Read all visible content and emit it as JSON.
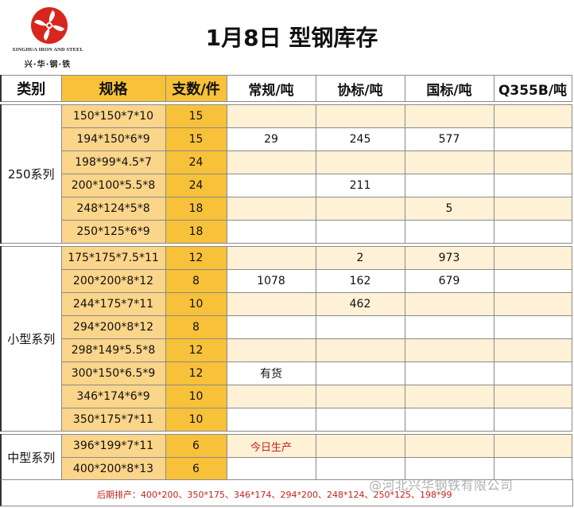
{
  "logo": {
    "name_en": "XINGHUA IRON AND STEEL",
    "name_cn": "兴·华·钢·铁"
  },
  "title": "1月8日 型钢库存",
  "columns": [
    "类别",
    "规格",
    "支数/件",
    "常规/吨",
    "协标/吨",
    "国标/吨",
    "Q355B/吨"
  ],
  "groups": [
    {
      "category": "250系列",
      "rows": [
        {
          "spec": "150*150*7*10",
          "qty": "15",
          "regular": "",
          "assoc": "",
          "national": "",
          "q355b": ""
        },
        {
          "spec": "194*150*6*9",
          "qty": "15",
          "regular": "29",
          "assoc": "245",
          "national": "577",
          "q355b": ""
        },
        {
          "spec": "198*99*4.5*7",
          "qty": "24",
          "regular": "",
          "assoc": "",
          "national": "",
          "q355b": ""
        },
        {
          "spec": "200*100*5.5*8",
          "qty": "24",
          "regular": "",
          "assoc": "211",
          "national": "",
          "q355b": ""
        },
        {
          "spec": "248*124*5*8",
          "qty": "18",
          "regular": "",
          "assoc": "",
          "national": "5",
          "q355b": ""
        },
        {
          "spec": "250*125*6*9",
          "qty": "18",
          "regular": "",
          "assoc": "",
          "national": "",
          "q355b": ""
        }
      ]
    },
    {
      "category": "小型系列",
      "rows": [
        {
          "spec": "175*175*7.5*11",
          "qty": "12",
          "regular": "",
          "assoc": "2",
          "national": "973",
          "q355b": ""
        },
        {
          "spec": "200*200*8*12",
          "qty": "8",
          "regular": "1078",
          "assoc": "162",
          "national": "679",
          "q355b": ""
        },
        {
          "spec": "244*175*7*11",
          "qty": "10",
          "regular": "",
          "assoc": "462",
          "national": "",
          "q355b": ""
        },
        {
          "spec": "294*200*8*12",
          "qty": "8",
          "regular": "",
          "assoc": "",
          "national": "",
          "q355b": ""
        },
        {
          "spec": "298*149*5.5*8",
          "qty": "12",
          "regular": "",
          "assoc": "",
          "national": "",
          "q355b": ""
        },
        {
          "spec": "300*150*6.5*9",
          "qty": "12",
          "regular": "有货",
          "assoc": "",
          "national": "",
          "q355b": ""
        },
        {
          "spec": "346*174*6*9",
          "qty": "10",
          "regular": "",
          "assoc": "",
          "national": "",
          "q355b": ""
        },
        {
          "spec": "350*175*7*11",
          "qty": "10",
          "regular": "",
          "assoc": "",
          "national": "",
          "q355b": ""
        }
      ]
    },
    {
      "category": "中型系列",
      "rows": [
        {
          "spec": "396*199*7*11",
          "qty": "6",
          "regular": "今日生产",
          "assoc": "",
          "national": "",
          "q355b": ""
        },
        {
          "spec": "400*200*8*13",
          "qty": "6",
          "regular": "",
          "assoc": "",
          "national": "",
          "q355b": ""
        }
      ]
    }
  ],
  "footer": "后期排产：400*200、350*175、346*174、294*200、248*124、250*125、198*99",
  "watermark": "@河北兴华钢铁有限公司",
  "colors": {
    "header_yellow": "#f8c13a",
    "spec_light": "#fbd58a",
    "row_alt": "#fff1d6",
    "accent_red": "#c0221a",
    "logo_red": "#d8261e"
  }
}
